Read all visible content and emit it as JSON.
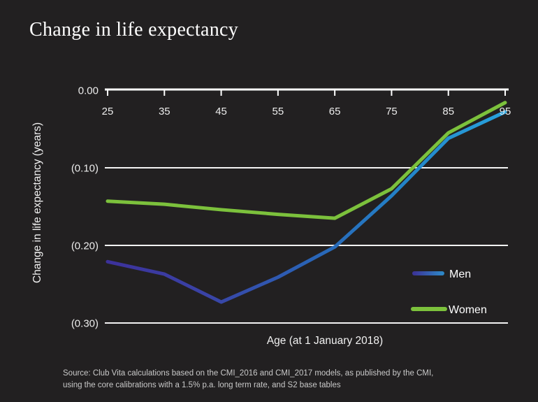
{
  "page": {
    "title": "Change in life expectancy",
    "background_color": "#222021"
  },
  "chart_data": {
    "type": "line",
    "title": "Change in life expectancy",
    "xlabel": "Age (at 1 January 2018)",
    "ylabel": "Change in life expectancy (years)",
    "x": [
      25,
      35,
      45,
      55,
      65,
      75,
      85,
      95
    ],
    "x_tick_labels": [
      "25",
      "35",
      "45",
      "55",
      "65",
      "75",
      "85",
      "95"
    ],
    "y_ticks": [
      0.0,
      -0.1,
      -0.2,
      -0.3
    ],
    "y_tick_labels": [
      "0.00",
      "(0.10)",
      "(0.20)",
      "(0.30)"
    ],
    "ylim": [
      -0.32,
      0.0
    ],
    "grid": "horizontal-only",
    "axis_position": "top",
    "legend_position": "inside-lower-right",
    "series": [
      {
        "name": "Men",
        "values": [
          -0.221,
          -0.237,
          -0.273,
          -0.241,
          -0.202,
          -0.136,
          -0.062,
          -0.028
        ],
        "color_gradient": [
          "#3C319B",
          "#3A43A6",
          "#2A62B5",
          "#2384C8",
          "#28A3DE"
        ]
      },
      {
        "name": "Women",
        "values": [
          -0.143,
          -0.147,
          -0.154,
          -0.16,
          -0.165,
          -0.127,
          -0.055,
          -0.016
        ],
        "color": "#7CC13C"
      }
    ],
    "grid_color": "#f3f3f3",
    "source_line1": "Source: Club Vita calculations based on the CMI_2016 and CMI_2017 models, as published by the CMI,",
    "source_line2": "using the core calibrations with a 1.5% p.a. long term rate, and S2 base tables"
  }
}
